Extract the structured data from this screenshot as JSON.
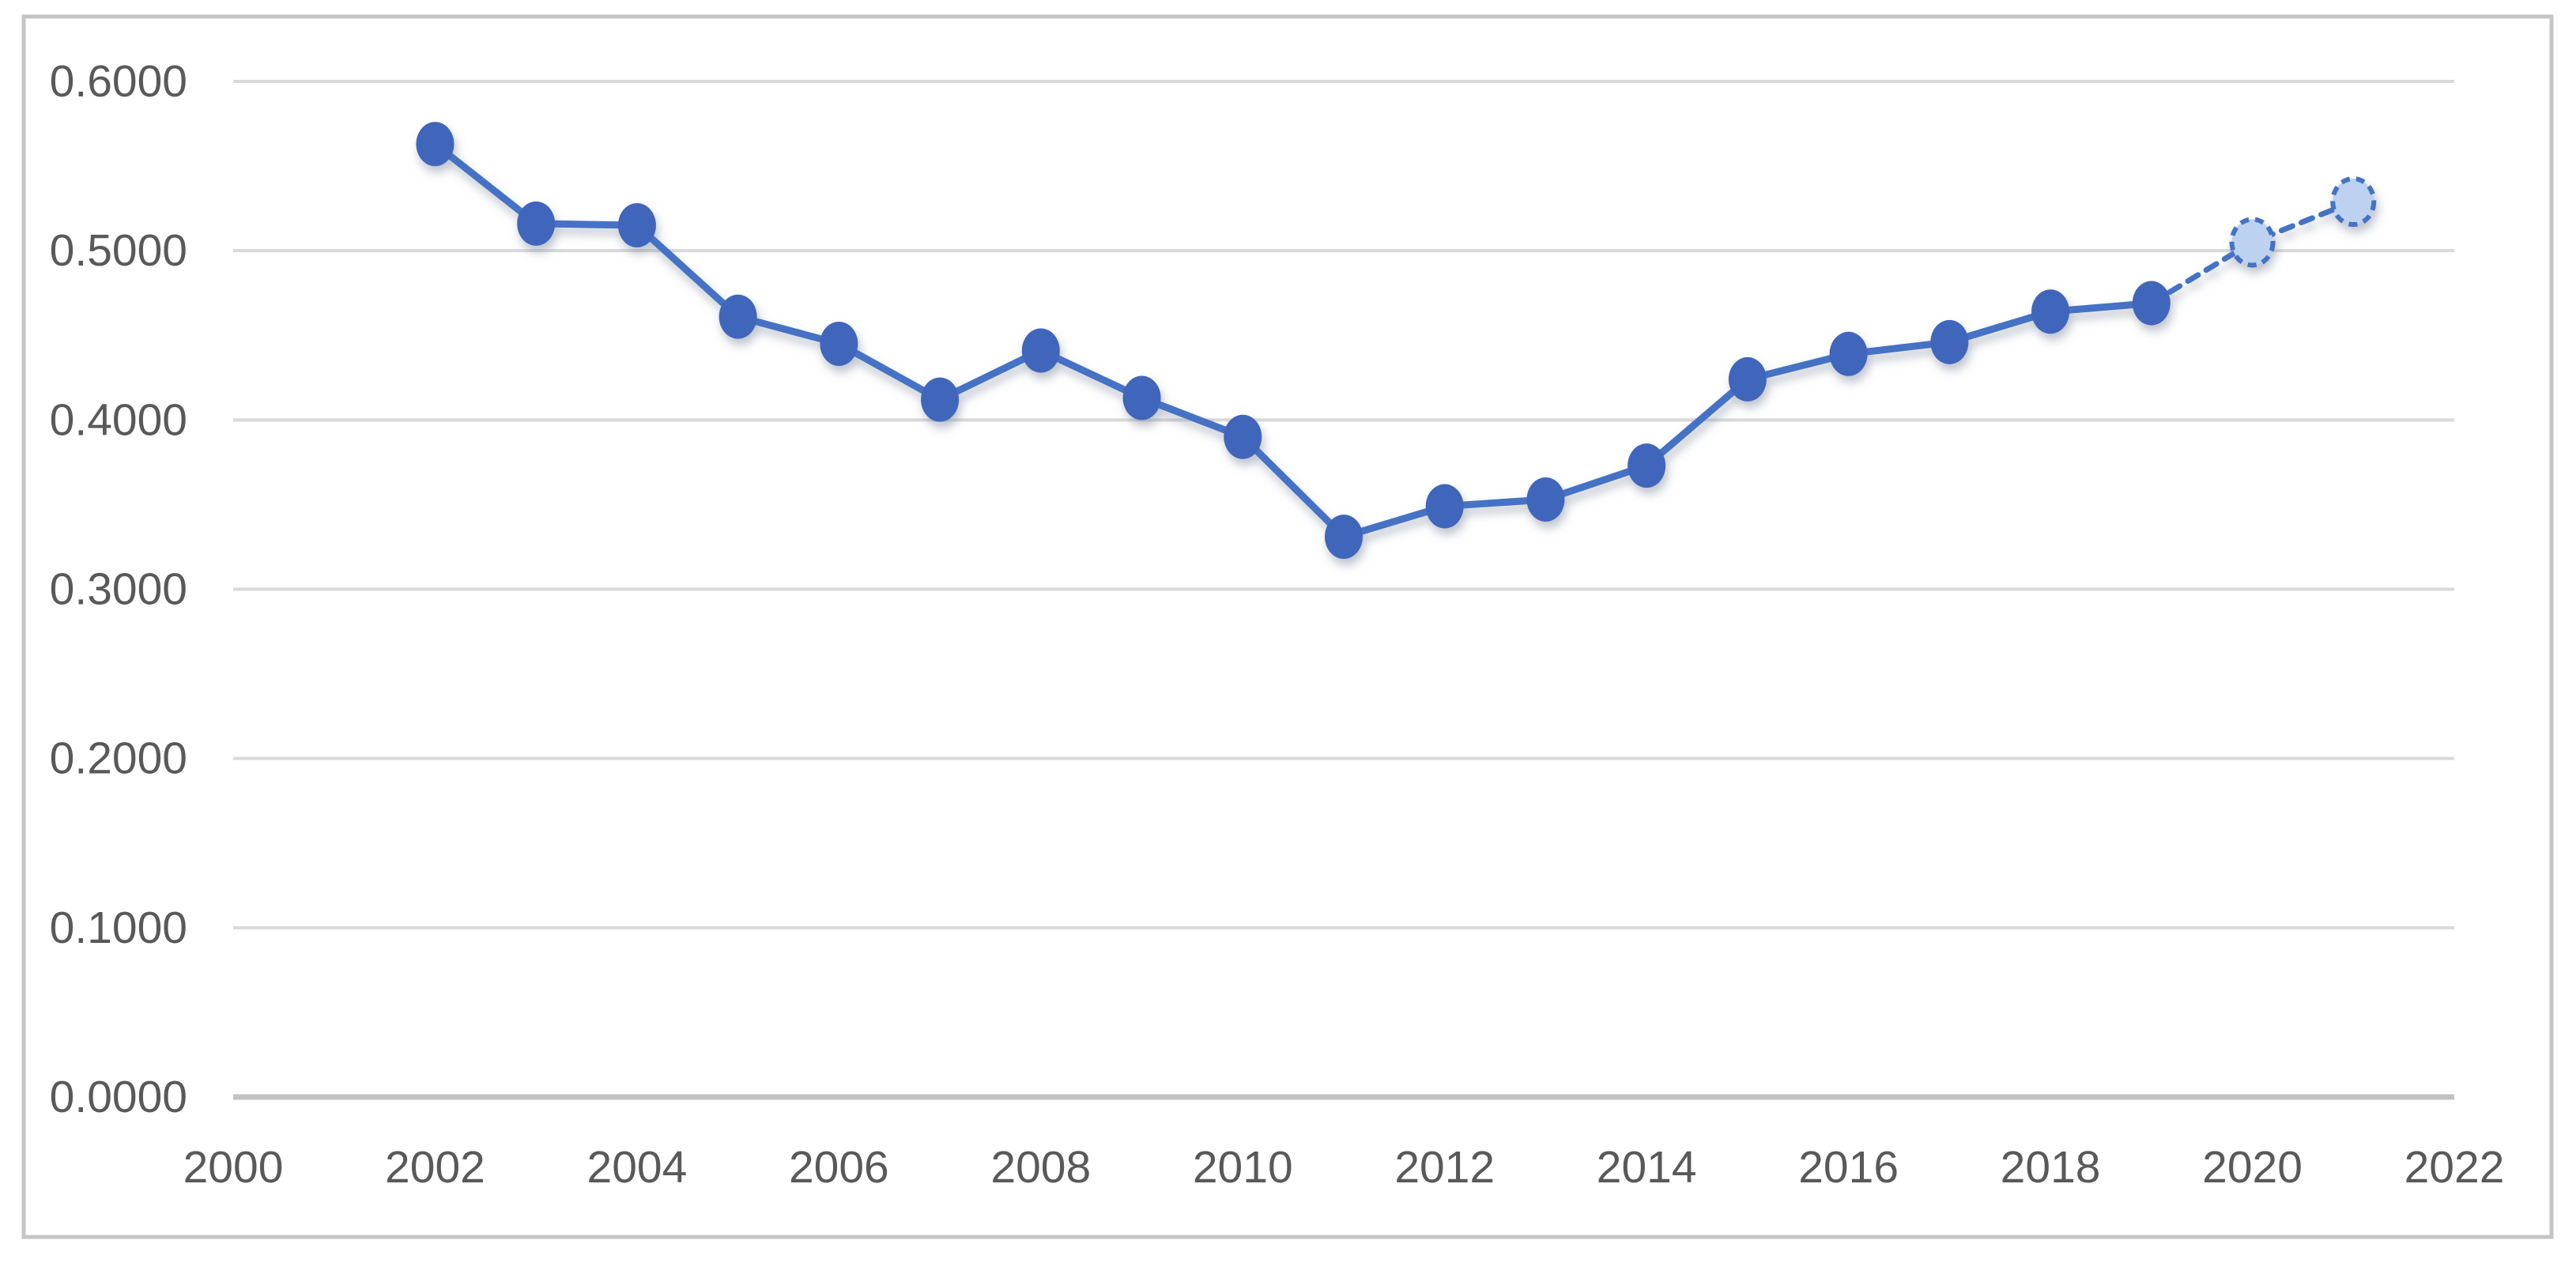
{
  "figure": {
    "background": "#ffffff",
    "frame_border_color": "#c5c5c5",
    "frame_border_width": 5
  },
  "chart_data": {
    "type": "line",
    "title": "",
    "xlabel": "",
    "ylabel": "",
    "legend_position": "none",
    "grid": true,
    "xlim": [
      2000,
      2022
    ],
    "ylim": [
      0.0,
      0.6
    ],
    "x": [
      2002,
      2003,
      2004,
      2005,
      2006,
      2007,
      2008,
      2009,
      2010,
      2011,
      2012,
      2013,
      2014,
      2015,
      2016,
      2017,
      2018,
      2019,
      2020,
      2021
    ],
    "values": [
      0.563,
      0.516,
      0.515,
      0.461,
      0.445,
      0.412,
      0.441,
      0.413,
      0.39,
      0.331,
      0.349,
      0.353,
      0.373,
      0.424,
      0.439,
      0.446,
      0.464,
      0.469,
      0.505,
      0.529
    ],
    "solid_through_year": 2019,
    "forecast_years": [
      2020,
      2021
    ],
    "x_ticks": [
      {
        "value": 2000,
        "label": "2000"
      },
      {
        "value": 2002,
        "label": "2002"
      },
      {
        "value": 2004,
        "label": "2004"
      },
      {
        "value": 2006,
        "label": "2006"
      },
      {
        "value": 2008,
        "label": "2008"
      },
      {
        "value": 2010,
        "label": "2010"
      },
      {
        "value": 2012,
        "label": "2012"
      },
      {
        "value": 2014,
        "label": "2014"
      },
      {
        "value": 2016,
        "label": "2016"
      },
      {
        "value": 2018,
        "label": "2018"
      },
      {
        "value": 2020,
        "label": "2020"
      },
      {
        "value": 2022,
        "label": "2022"
      }
    ],
    "y_ticks": [
      {
        "value": 0.0,
        "label": "0.0000"
      },
      {
        "value": 0.1,
        "label": "0.1000"
      },
      {
        "value": 0.2,
        "label": "0.2000"
      },
      {
        "value": 0.3,
        "label": "0.3000"
      },
      {
        "value": 0.4,
        "label": "0.4000"
      },
      {
        "value": 0.5,
        "label": "0.5000"
      },
      {
        "value": 0.6,
        "label": "0.6000"
      }
    ],
    "colors": {
      "series_line": "#4472c4",
      "marker_fill": "#3f66bb",
      "forecast_marker_fill": "#bcd2f0",
      "forecast_edge": "#4472c4",
      "gridline": "#d9d9d9",
      "axis_line": "#c3c3c3",
      "tick_label": "#595959"
    }
  }
}
